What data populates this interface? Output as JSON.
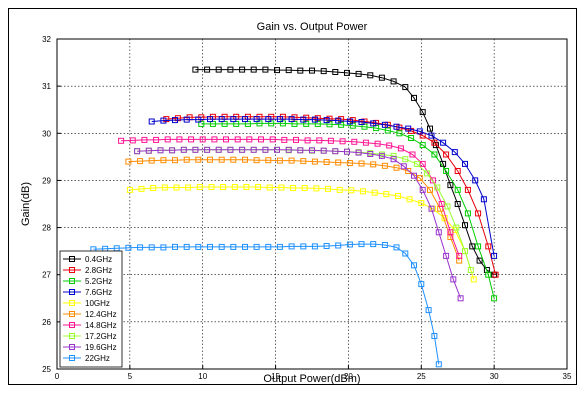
{
  "chart_data": {
    "type": "line",
    "title": "Gain vs. Output Power",
    "xlabel": "Output Power(dBm)",
    "ylabel": "Gain(dB)",
    "xlim": [
      0,
      35
    ],
    "ylim": [
      25,
      32
    ],
    "xticks": [
      0,
      5,
      10,
      15,
      20,
      25,
      30,
      35
    ],
    "yticks": [
      25,
      26,
      27,
      28,
      29,
      30,
      31,
      32
    ],
    "grid": true,
    "legend_position": "bottom-left",
    "marker": "square",
    "series": [
      {
        "name": "0.4GHz",
        "color": "#000000",
        "x": [
          9.5,
          10.3,
          11.1,
          11.9,
          12.7,
          13.5,
          14.3,
          15.1,
          15.9,
          16.7,
          17.5,
          18.3,
          19.1,
          19.9,
          20.7,
          21.5,
          22.3,
          23.1,
          23.9,
          24.5,
          25.1,
          25.6,
          26.0,
          26.5,
          27.0,
          27.5,
          28.0,
          28.5,
          29.0,
          29.5,
          30.0
        ],
        "y": [
          31.35,
          31.35,
          31.35,
          31.35,
          31.35,
          31.35,
          31.35,
          31.34,
          31.34,
          31.33,
          31.33,
          31.32,
          31.3,
          31.28,
          31.26,
          31.23,
          31.18,
          31.1,
          30.98,
          30.75,
          30.45,
          30.1,
          29.75,
          29.35,
          28.9,
          28.5,
          28.05,
          27.6,
          27.3,
          27.1,
          27.0
        ]
      },
      {
        "name": "2.8GHz",
        "color": "#e8000b",
        "x": [
          7.5,
          8.3,
          9.1,
          9.9,
          10.7,
          11.5,
          12.3,
          13.1,
          13.9,
          14.7,
          15.5,
          16.3,
          17.1,
          17.9,
          18.7,
          19.5,
          20.3,
          21.1,
          21.9,
          22.7,
          23.5,
          24.3,
          25.1,
          25.9,
          26.7,
          27.5,
          28.2,
          28.9,
          29.6,
          30.1
        ],
        "y": [
          30.3,
          30.32,
          30.34,
          30.34,
          30.35,
          30.35,
          30.35,
          30.35,
          30.35,
          30.35,
          30.35,
          30.34,
          30.33,
          30.32,
          30.31,
          30.3,
          30.28,
          30.25,
          30.22,
          30.18,
          30.12,
          30.05,
          29.95,
          29.8,
          29.55,
          29.2,
          28.8,
          28.3,
          27.6,
          27.0
        ]
      },
      {
        "name": "5.2GHz",
        "color": "#00cc00",
        "x": [
          9.9,
          10.7,
          11.5,
          12.3,
          13.1,
          13.9,
          14.7,
          15.5,
          16.3,
          17.1,
          17.9,
          18.7,
          19.5,
          20.3,
          21.1,
          21.9,
          22.7,
          23.5,
          24.3,
          25.1,
          25.9,
          26.7,
          27.5,
          28.2,
          28.9,
          29.6,
          30.0
        ],
        "y": [
          30.2,
          30.2,
          30.2,
          30.2,
          30.2,
          30.21,
          30.21,
          30.21,
          30.2,
          30.2,
          30.2,
          30.19,
          30.18,
          30.16,
          30.14,
          30.11,
          30.06,
          30.0,
          29.9,
          29.75,
          29.55,
          29.2,
          28.8,
          28.3,
          27.6,
          27.0,
          26.5
        ]
      },
      {
        "name": "7.6GHz",
        "color": "#0000cc",
        "x": [
          6.5,
          7.3,
          8.1,
          8.9,
          9.7,
          10.5,
          11.3,
          12.1,
          12.9,
          13.7,
          14.5,
          15.3,
          16.1,
          16.9,
          17.7,
          18.5,
          19.3,
          20.1,
          20.9,
          21.7,
          22.5,
          23.3,
          24.1,
          24.9,
          25.7,
          26.5,
          27.3,
          28.0,
          28.7,
          29.3,
          30.0
        ],
        "y": [
          30.25,
          30.27,
          30.28,
          30.29,
          30.29,
          30.3,
          30.3,
          30.3,
          30.3,
          30.3,
          30.3,
          30.3,
          30.3,
          30.29,
          30.29,
          30.28,
          30.27,
          30.25,
          30.24,
          30.21,
          30.18,
          30.14,
          30.1,
          30.04,
          29.95,
          29.8,
          29.6,
          29.35,
          29.0,
          28.6,
          27.4
        ]
      },
      {
        "name": "10GHz",
        "color": "#ffff00",
        "x": [
          5.0,
          5.8,
          6.6,
          7.4,
          8.2,
          9.0,
          9.8,
          10.6,
          11.4,
          12.2,
          13.0,
          13.8,
          14.6,
          15.4,
          16.2,
          17.0,
          17.8,
          18.6,
          19.4,
          20.2,
          21.0,
          21.8,
          22.6,
          23.4,
          24.2,
          25.0,
          25.8,
          26.6,
          27.3,
          28.0,
          28.6
        ],
        "y": [
          28.8,
          28.82,
          28.84,
          28.85,
          28.85,
          28.85,
          28.86,
          28.86,
          28.86,
          28.86,
          28.86,
          28.86,
          28.85,
          28.85,
          28.84,
          28.84,
          28.83,
          28.82,
          28.8,
          28.79,
          28.77,
          28.74,
          28.71,
          28.67,
          28.6,
          28.52,
          28.4,
          28.2,
          27.95,
          27.5,
          26.9
        ]
      },
      {
        "name": "12.4GHz",
        "color": "#ff8c00",
        "x": [
          4.9,
          5.7,
          6.5,
          7.3,
          8.1,
          8.9,
          9.7,
          10.5,
          11.3,
          12.1,
          12.9,
          13.7,
          14.5,
          15.3,
          16.1,
          16.9,
          17.7,
          18.5,
          19.3,
          20.1,
          20.9,
          21.7,
          22.5,
          23.3,
          24.1,
          24.9,
          25.6,
          26.3,
          27.0,
          27.6
        ],
        "y": [
          29.4,
          29.41,
          29.42,
          29.43,
          29.43,
          29.44,
          29.44,
          29.44,
          29.44,
          29.44,
          29.44,
          29.43,
          29.43,
          29.42,
          29.42,
          29.41,
          29.4,
          29.39,
          29.38,
          29.37,
          29.36,
          29.34,
          29.31,
          29.27,
          29.2,
          29.05,
          28.8,
          28.4,
          27.8,
          27.3
        ]
      },
      {
        "name": "14.8GHz",
        "color": "#ff1493",
        "x": [
          4.4,
          5.2,
          6.0,
          6.8,
          7.6,
          8.4,
          9.2,
          10.0,
          10.8,
          11.6,
          12.4,
          13.2,
          14.0,
          14.8,
          15.6,
          16.4,
          17.2,
          18.0,
          18.8,
          19.6,
          20.4,
          21.2,
          22.0,
          22.8,
          23.6,
          24.4,
          25.1,
          25.8,
          26.4,
          27.0,
          27.6
        ],
        "y": [
          29.84,
          29.85,
          29.86,
          29.86,
          29.87,
          29.87,
          29.87,
          29.87,
          29.87,
          29.87,
          29.87,
          29.87,
          29.87,
          29.87,
          29.86,
          29.86,
          29.85,
          29.85,
          29.84,
          29.83,
          29.82,
          29.8,
          29.78,
          29.74,
          29.68,
          29.55,
          29.35,
          29.0,
          28.5,
          27.9,
          27.4
        ]
      },
      {
        "name": "17.2GHz",
        "color": "#99ff33",
        "x": [
          5.5,
          6.3,
          7.1,
          7.9,
          8.7,
          9.5,
          10.3,
          11.1,
          11.9,
          12.7,
          13.5,
          14.3,
          15.1,
          15.9,
          16.7,
          17.5,
          18.3,
          19.1,
          19.9,
          20.7,
          21.5,
          22.3,
          23.1,
          23.9,
          24.7,
          25.4,
          26.1,
          26.8,
          27.4,
          28.0,
          28.4
        ],
        "y": [
          29.62,
          29.63,
          29.64,
          29.64,
          29.65,
          29.65,
          29.65,
          29.65,
          29.65,
          29.65,
          29.65,
          29.65,
          29.65,
          29.64,
          29.64,
          29.63,
          29.63,
          29.62,
          29.61,
          29.6,
          29.58,
          29.55,
          29.52,
          29.45,
          29.35,
          29.15,
          28.85,
          28.45,
          28.0,
          27.5,
          27.1
        ]
      },
      {
        "name": "19.6GHz",
        "color": "#9933cc",
        "x": [
          5.5,
          6.3,
          7.1,
          7.9,
          8.7,
          9.5,
          10.3,
          11.1,
          11.9,
          12.7,
          13.5,
          14.3,
          15.1,
          15.9,
          16.7,
          17.5,
          18.3,
          19.1,
          19.9,
          20.7,
          21.5,
          22.3,
          23.1,
          23.8,
          24.5,
          25.1,
          25.7,
          26.2,
          26.7,
          27.2,
          27.7
        ],
        "y": [
          29.62,
          29.63,
          29.64,
          29.64,
          29.65,
          29.65,
          29.65,
          29.65,
          29.65,
          29.65,
          29.65,
          29.65,
          29.65,
          29.65,
          29.64,
          29.64,
          29.63,
          29.62,
          29.61,
          29.59,
          29.56,
          29.52,
          29.45,
          29.3,
          29.1,
          28.8,
          28.4,
          27.9,
          27.4,
          26.9,
          26.5
        ]
      },
      {
        "name": "22GHz",
        "color": "#1e90ff",
        "x": [
          2.5,
          3.3,
          4.1,
          4.9,
          5.7,
          6.5,
          7.3,
          8.1,
          8.9,
          9.7,
          10.5,
          11.3,
          12.1,
          12.9,
          13.7,
          14.5,
          15.3,
          16.1,
          16.9,
          17.7,
          18.5,
          19.3,
          20.1,
          20.9,
          21.7,
          22.5,
          23.3,
          23.9,
          24.5,
          25.0,
          25.5,
          25.9,
          26.2
        ],
        "y": [
          27.54,
          27.55,
          27.56,
          27.57,
          27.58,
          27.58,
          27.58,
          27.59,
          27.59,
          27.59,
          27.59,
          27.59,
          27.59,
          27.59,
          27.59,
          27.59,
          27.59,
          27.6,
          27.6,
          27.6,
          27.61,
          27.62,
          27.64,
          27.65,
          27.65,
          27.63,
          27.58,
          27.45,
          27.2,
          26.8,
          26.25,
          25.7,
          25.1
        ]
      }
    ]
  }
}
